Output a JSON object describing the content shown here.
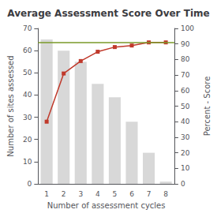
{
  "chart_data": {
    "type": "bar",
    "title": "Average Assessment Score Over Time",
    "xlabel": "Number of assessment cycles",
    "ylabel": "Number of sites assessed",
    "y2label": "Percent - Score",
    "categories": [
      1,
      2,
      3,
      4,
      5,
      6,
      7,
      8
    ],
    "series": [
      {
        "type": "bar",
        "color": "#d8d8d8",
        "values": [
          65,
          60,
          55,
          45,
          39,
          28,
          14,
          1
        ]
      },
      {
        "type": "line",
        "axis": "y2",
        "color": "#c0392b",
        "marker": "square",
        "values": [
          40,
          71,
          79,
          85,
          88,
          89,
          91,
          91
        ]
      }
    ],
    "reference_lines": [
      {
        "value": 91,
        "color": "#7a9a28",
        "axis": "y2"
      }
    ],
    "ylim": [
      0,
      70
    ],
    "yticks": [
      0,
      10,
      20,
      30,
      40,
      50,
      60,
      70
    ],
    "y2lim": [
      0,
      100
    ],
    "y2ticks": [
      0,
      10,
      20,
      30,
      40,
      50,
      60,
      70,
      80,
      90,
      100
    ],
    "grid": false
  }
}
